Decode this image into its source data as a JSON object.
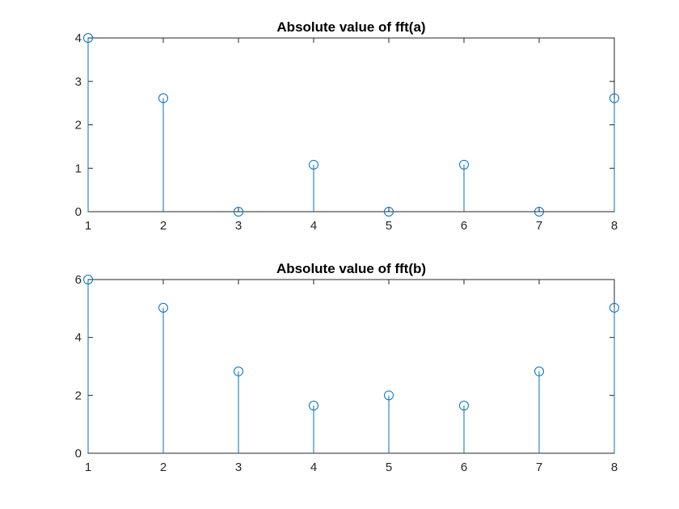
{
  "chart_data": [
    {
      "type": "stem",
      "title": "Absolute value of fft(a)",
      "xlabel": "",
      "ylabel": "",
      "x": [
        1,
        2,
        3,
        4,
        5,
        6,
        7,
        8
      ],
      "values": [
        4,
        2.613,
        0,
        1.082,
        0,
        1.082,
        0,
        2.613
      ],
      "xlim": [
        1,
        8
      ],
      "ylim": [
        0,
        4
      ],
      "xticks": [
        1,
        2,
        3,
        4,
        5,
        6,
        7,
        8
      ],
      "yticks": [
        0,
        1,
        2,
        3,
        4
      ],
      "grid": false,
      "color": "#0072BD"
    },
    {
      "type": "stem",
      "title": "Absolute value of fft(b)",
      "xlabel": "",
      "ylabel": "",
      "x": [
        1,
        2,
        3,
        4,
        5,
        6,
        7,
        8
      ],
      "values": [
        6,
        5.027,
        2.828,
        1.645,
        2,
        1.645,
        2.828,
        5.027
      ],
      "xlim": [
        1,
        8
      ],
      "ylim": [
        0,
        6
      ],
      "xticks": [
        1,
        2,
        3,
        4,
        5,
        6,
        7,
        8
      ],
      "yticks": [
        0,
        2,
        4,
        6
      ],
      "grid": false,
      "color": "#0072BD"
    }
  ]
}
